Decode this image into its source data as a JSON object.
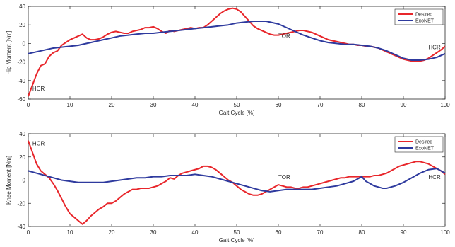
{
  "chart_data": [
    {
      "type": "line",
      "xlabel": "Gait Cycle [%]",
      "ylabel": "Hip Moment [Nm]",
      "xlim": [
        0,
        100
      ],
      "ylim": [
        -60,
        40
      ],
      "xticks": [
        "0",
        "10",
        "20",
        "30",
        "40",
        "50",
        "60",
        "70",
        "80",
        "90",
        "100"
      ],
      "yticks": [
        "40",
        "20",
        "0",
        "-20",
        "-40",
        "-60"
      ],
      "grid": false,
      "legend": "top-right",
      "annotations": [
        {
          "text": "HCR",
          "x": 1,
          "y": -51
        },
        {
          "text": "TOR",
          "x": 60,
          "y": 6
        },
        {
          "text": "HCR",
          "x": 96,
          "y": -6
        }
      ],
      "series": [
        {
          "name": "Desired",
          "color": "#e8262b",
          "x": [
            0,
            1,
            2,
            3,
            4,
            5,
            6,
            7,
            8,
            9,
            10,
            11,
            12,
            13,
            14,
            15,
            16,
            17,
            18,
            19,
            20,
            21,
            22,
            23,
            24,
            25,
            26,
            27,
            28,
            29,
            30,
            31,
            32,
            33,
            34,
            35,
            36,
            37,
            38,
            39,
            40,
            41,
            42,
            43,
            44,
            45,
            46,
            47,
            48,
            49,
            50,
            51,
            52,
            53,
            54,
            55,
            56,
            57,
            58,
            59,
            60,
            61,
            62,
            63,
            64,
            65,
            66,
            67,
            68,
            69,
            70,
            71,
            72,
            73,
            74,
            75,
            76,
            77,
            78,
            79,
            80,
            81,
            82,
            83,
            84,
            85,
            86,
            87,
            88,
            89,
            90,
            91,
            92,
            93,
            94,
            95,
            96,
            97,
            98,
            99,
            100
          ],
          "values": [
            -57,
            -45,
            -33,
            -24,
            -22,
            -14,
            -10,
            -8,
            -2,
            1,
            4,
            6,
            8,
            10,
            6,
            4,
            4,
            5,
            7,
            10,
            12,
            13,
            12,
            11,
            11,
            13,
            14,
            15,
            17,
            17,
            18,
            16,
            13,
            11,
            14,
            13,
            14,
            15,
            16,
            17,
            16,
            17,
            17,
            20,
            24,
            28,
            32,
            35,
            37,
            38,
            37,
            34,
            29,
            24,
            19,
            16,
            14,
            12,
            10,
            9,
            9,
            10,
            11,
            12,
            13,
            14,
            14,
            13,
            12,
            10,
            8,
            6,
            4,
            3,
            2,
            1,
            0,
            -1,
            -1,
            -2,
            -2,
            -3,
            -3,
            -4,
            -5,
            -7,
            -9,
            -11,
            -13,
            -15,
            -17,
            -18,
            -19,
            -19,
            -19,
            -18,
            -16,
            -13,
            -10,
            -7,
            -3
          ]
        },
        {
          "name": "ExoNET",
          "color": "#2e3a9e",
          "x": [
            0,
            2,
            4,
            6,
            8,
            10,
            12,
            14,
            16,
            18,
            20,
            22,
            24,
            26,
            28,
            30,
            32,
            34,
            36,
            38,
            40,
            42,
            44,
            46,
            48,
            50,
            52,
            54,
            56,
            57,
            58,
            60,
            62,
            64,
            66,
            68,
            70,
            72,
            74,
            76,
            78,
            80,
            82,
            84,
            86,
            88,
            90,
            92,
            94,
            96,
            98,
            100
          ],
          "values": [
            -11,
            -9,
            -7,
            -5,
            -4,
            -3,
            -2,
            0,
            2,
            4,
            6,
            8,
            9,
            10,
            11,
            11,
            12,
            13,
            14,
            15,
            16,
            17,
            18,
            19,
            20,
            22,
            23,
            24,
            24,
            24,
            23,
            21,
            17,
            13,
            9,
            6,
            3,
            1,
            0,
            -1,
            -1,
            -2,
            -3,
            -5,
            -8,
            -12,
            -16,
            -18,
            -18,
            -17,
            -15,
            -11
          ]
        }
      ]
    },
    {
      "type": "line",
      "xlabel": "Gait Cycle [%]",
      "ylabel": "Knee Moment [Nm]",
      "xlim": [
        0,
        100
      ],
      "ylim": [
        -40,
        40
      ],
      "xticks": [
        "0",
        "10",
        "20",
        "30",
        "40",
        "50",
        "60",
        "70",
        "80",
        "90",
        "100"
      ],
      "yticks": [
        "40",
        "20",
        "0",
        "-20",
        "-40"
      ],
      "grid": false,
      "legend": "top-right",
      "annotations": [
        {
          "text": "HCR",
          "x": 1,
          "y": 30
        },
        {
          "text": "TOR",
          "x": 60,
          "y": 1
        },
        {
          "text": "HCR",
          "x": 96,
          "y": 1
        }
      ],
      "series": [
        {
          "name": "Desired",
          "color": "#e8262b",
          "x": [
            0,
            1,
            2,
            3,
            4,
            5,
            6,
            7,
            8,
            9,
            10,
            11,
            12,
            13,
            14,
            15,
            16,
            17,
            18,
            19,
            20,
            21,
            22,
            23,
            24,
            25,
            26,
            27,
            28,
            29,
            30,
            31,
            32,
            33,
            34,
            35,
            36,
            37,
            38,
            39,
            40,
            41,
            42,
            43,
            44,
            45,
            46,
            47,
            48,
            49,
            50,
            51,
            52,
            53,
            54,
            55,
            56,
            57,
            58,
            59,
            60,
            61,
            62,
            63,
            64,
            65,
            66,
            67,
            68,
            69,
            70,
            71,
            72,
            73,
            74,
            75,
            76,
            77,
            78,
            79,
            80,
            81,
            82,
            83,
            84,
            85,
            86,
            87,
            88,
            89,
            90,
            91,
            92,
            93,
            94,
            95,
            96,
            97,
            98,
            99,
            100
          ],
          "values": [
            34,
            24,
            14,
            8,
            5,
            2,
            -3,
            -9,
            -16,
            -23,
            -29,
            -32,
            -35,
            -38,
            -35,
            -31,
            -28,
            -25,
            -23,
            -20,
            -20,
            -18,
            -15,
            -12,
            -10,
            -8,
            -8,
            -7,
            -7,
            -7,
            -6,
            -5,
            -3,
            -1,
            2,
            1,
            4,
            6,
            7,
            8,
            9,
            10,
            12,
            12,
            11,
            9,
            6,
            3,
            0,
            -2,
            -5,
            -8,
            -10,
            -12,
            -13,
            -13,
            -12,
            -10,
            -8,
            -6,
            -4,
            -5,
            -6,
            -6,
            -7,
            -7,
            -6,
            -6,
            -5,
            -4,
            -3,
            -2,
            -1,
            0,
            1,
            2,
            2,
            3,
            3,
            3,
            3,
            3,
            3,
            4,
            4,
            5,
            6,
            8,
            10,
            12,
            13,
            14,
            15,
            16,
            16,
            15,
            14,
            12,
            10,
            8,
            5
          ]
        },
        {
          "name": "ExoNET",
          "color": "#2e3a9e",
          "x": [
            0,
            2,
            4,
            6,
            8,
            10,
            12,
            14,
            16,
            18,
            20,
            22,
            24,
            26,
            28,
            30,
            32,
            34,
            36,
            38,
            40,
            42,
            44,
            46,
            48,
            50,
            52,
            54,
            56,
            58,
            60,
            62,
            64,
            66,
            68,
            70,
            72,
            74,
            76,
            78,
            79,
            80,
            81,
            82,
            83,
            84,
            85,
            86,
            87,
            88,
            90,
            92,
            94,
            96,
            98,
            100
          ],
          "values": [
            8,
            6,
            4,
            2,
            0,
            -1,
            -2,
            -2,
            -2,
            -2,
            -1,
            0,
            1,
            2,
            2,
            3,
            3,
            4,
            4,
            4,
            5,
            4,
            3,
            1,
            -1,
            -3,
            -5,
            -7,
            -9,
            -10,
            -9,
            -8,
            -8,
            -8,
            -8,
            -7,
            -6,
            -5,
            -3,
            -1,
            1,
            3,
            -1,
            -3,
            -5,
            -6,
            -7,
            -7,
            -6,
            -5,
            -2,
            2,
            6,
            9,
            10,
            6
          ]
        }
      ]
    }
  ]
}
